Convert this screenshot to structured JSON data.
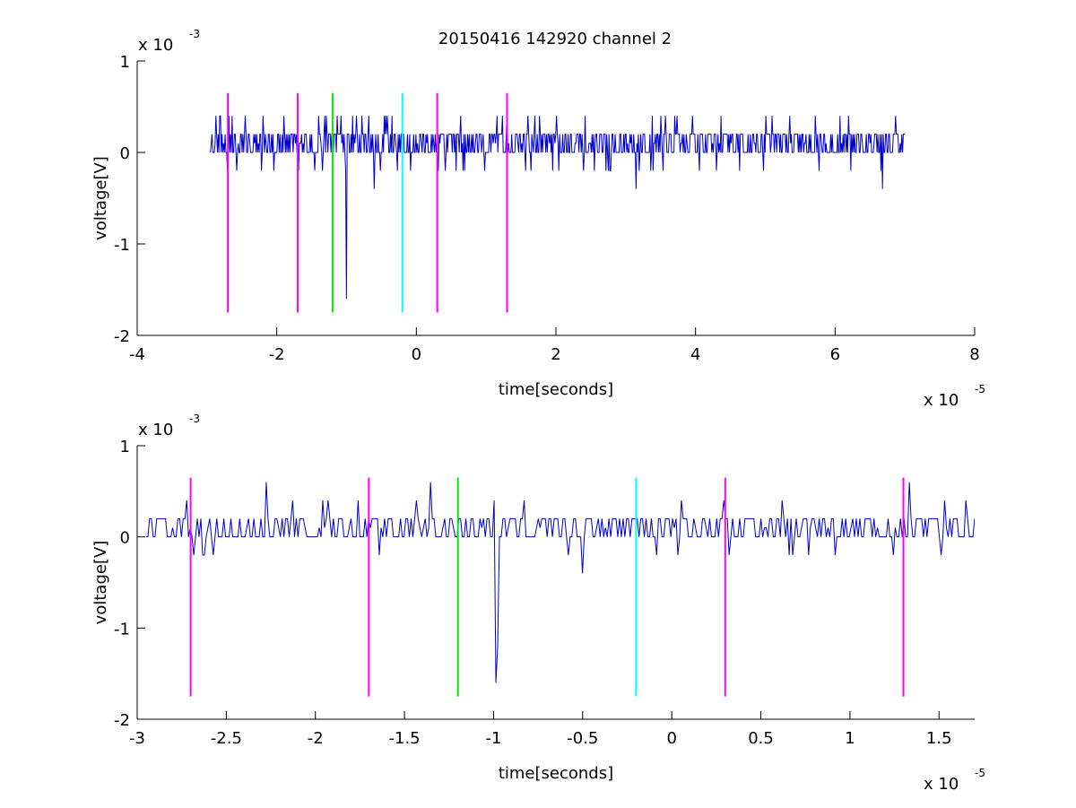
{
  "figure": {
    "title": "20150416 142920 channel 2",
    "background": "#ffffff",
    "signal_color": "#0000cc",
    "marker_colors": {
      "magenta": "#ff00ff",
      "green": "#00ee00",
      "cyan": "#00ffff"
    }
  },
  "chart_data": [
    {
      "type": "line",
      "title": "20150416 142920 channel 2",
      "xlabel": "time[seconds]",
      "ylabel": "voltage[V]",
      "x_exponent": "x 10",
      "x_exponent_power": "-5",
      "y_exponent": "x 10",
      "y_exponent_power": "-3",
      "x_scale": 1e-05,
      "y_scale": 0.001,
      "xlim": [
        -4,
        8
      ],
      "ylim": [
        -2,
        1
      ],
      "xticks": [
        -4,
        -2,
        0,
        2,
        4,
        6,
        8
      ],
      "xtick_labels": [
        "-4",
        "-2",
        "0",
        "2",
        "4",
        "6",
        "8"
      ],
      "yticks": [
        -2,
        -1,
        0,
        1
      ],
      "ytick_labels": [
        "-2",
        "-1",
        "0",
        "1"
      ],
      "grid": false,
      "series": [
        {
          "color": "#0000cc",
          "x_range": [
            -2.95,
            7.0
          ],
          "points": 900,
          "baseline": 0.1,
          "noise_levels": [
            0.0,
            0.2
          ],
          "seed": 20150416,
          "spikes": [
            {
              "x": -1.0,
              "y": -1.6
            },
            {
              "x": -0.6,
              "y": -0.4
            },
            {
              "x": 3.15,
              "y": -0.4
            },
            {
              "x": 6.68,
              "y": -0.4
            },
            {
              "x": 1.3,
              "y": 0.5
            },
            {
              "x": 3.5,
              "y": 0.4
            }
          ]
        }
      ],
      "markers": [
        {
          "x": -2.7,
          "color": "#ff00ff",
          "y_from": -1.75,
          "y_to": 0.65
        },
        {
          "x": -1.7,
          "color": "#ff00ff",
          "y_from": -1.75,
          "y_to": 0.65
        },
        {
          "x": -1.2,
          "color": "#00ee00",
          "y_from": -1.75,
          "y_to": 0.65
        },
        {
          "x": -0.2,
          "color": "#00ffff",
          "y_from": -1.75,
          "y_to": 0.65
        },
        {
          "x": 0.3,
          "color": "#ff00ff",
          "y_from": -1.75,
          "y_to": 0.65
        },
        {
          "x": 1.3,
          "color": "#ff00ff",
          "y_from": -1.75,
          "y_to": 0.65
        }
      ]
    },
    {
      "type": "line",
      "title": "",
      "xlabel": "time[seconds]",
      "ylabel": "voltage[V]",
      "x_exponent": "x 10",
      "x_exponent_power": "-5",
      "y_exponent": "x 10",
      "y_exponent_power": "-3",
      "x_scale": 1e-05,
      "y_scale": 0.001,
      "xlim": [
        -3.0,
        1.7
      ],
      "ylim": [
        -2,
        1
      ],
      "xticks": [
        -3,
        -2.5,
        -2,
        -1.5,
        -1,
        -0.5,
        0,
        0.5,
        1,
        1.5
      ],
      "xtick_labels": [
        "-3",
        "-2.5",
        "-2",
        "-1.5",
        "-1",
        "-0.5",
        "0",
        "0.5",
        "1",
        "1.5"
      ],
      "yticks": [
        -2,
        -1,
        0,
        1
      ],
      "ytick_labels": [
        "-2",
        "-1",
        "0",
        "1"
      ],
      "grid": false,
      "series": [
        {
          "color": "#0000cc",
          "x_range": [
            -2.95,
            1.7
          ],
          "points": 470,
          "baseline": 0.1,
          "noise_levels": [
            0.0,
            0.2
          ],
          "seed": 142920,
          "spikes": [
            {
              "x": -0.99,
              "y": -1.6
            },
            {
              "x": -0.98,
              "y": -1.2
            },
            {
              "x": -0.5,
              "y": -0.4
            },
            {
              "x": -2.28,
              "y": 0.6
            },
            {
              "x": -1.35,
              "y": 0.6
            },
            {
              "x": 1.33,
              "y": 0.6
            }
          ]
        }
      ],
      "markers": [
        {
          "x": -2.7,
          "color": "#ff00ff",
          "y_from": -1.75,
          "y_to": 0.65
        },
        {
          "x": -1.7,
          "color": "#ff00ff",
          "y_from": -1.75,
          "y_to": 0.65
        },
        {
          "x": -1.2,
          "color": "#00ee00",
          "y_from": -1.75,
          "y_to": 0.65
        },
        {
          "x": -0.2,
          "color": "#00ffff",
          "y_from": -1.75,
          "y_to": 0.65
        },
        {
          "x": 0.3,
          "color": "#ff00ff",
          "y_from": -1.75,
          "y_to": 0.65
        },
        {
          "x": 1.3,
          "color": "#ff00ff",
          "y_from": -1.75,
          "y_to": 0.65
        }
      ]
    }
  ]
}
